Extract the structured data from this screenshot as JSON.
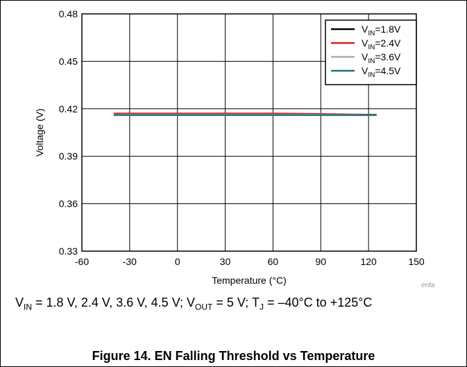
{
  "chart_data": {
    "type": "line",
    "xlabel": "Temperature (°C)",
    "ylabel": "Voltage (V)",
    "xlim": [
      -60,
      150
    ],
    "ylim": [
      0.33,
      0.48
    ],
    "xticks": [
      "-60",
      "-30",
      "0",
      "30",
      "60",
      "90",
      "120",
      "150"
    ],
    "yticks": [
      "0.33",
      "0.36",
      "0.39",
      "0.42",
      "0.45",
      "0.48"
    ],
    "grid": true,
    "legend_position": "top-right",
    "series": [
      {
        "name": "VIN=1.8V",
        "label_main": "V",
        "label_sub": "IN",
        "label_rest": "=1.8V",
        "color": "#000000",
        "x": [
          -40,
          0,
          25,
          60,
          85,
          125
        ],
        "y": [
          0.4165,
          0.4165,
          0.4165,
          0.4165,
          0.4165,
          0.4162
        ]
      },
      {
        "name": "VIN=2.4V",
        "label_main": "V",
        "label_sub": "IN",
        "label_rest": "=2.4V",
        "color": "#d42020",
        "x": [
          -40,
          0,
          25,
          60,
          85,
          125
        ],
        "y": [
          0.417,
          0.417,
          0.417,
          0.417,
          0.4168,
          0.4162
        ]
      },
      {
        "name": "VIN=3.6V",
        "label_main": "V",
        "label_sub": "IN",
        "label_rest": "=3.6V",
        "color": "#aaaaaa",
        "x": [
          -40,
          0,
          25,
          60,
          85,
          125
        ],
        "y": [
          0.4163,
          0.4163,
          0.4163,
          0.4163,
          0.4163,
          0.4161
        ]
      },
      {
        "name": "VIN=4.5V",
        "label_main": "V",
        "label_sub": "IN",
        "label_rest": "=4.5V",
        "color": "#2a6e78",
        "x": [
          -40,
          0,
          25,
          60,
          85,
          125
        ],
        "y": [
          0.416,
          0.416,
          0.416,
          0.416,
          0.416,
          0.416
        ]
      }
    ],
    "annotation_code": "enfa"
  },
  "conditions": {
    "vin_main": "V",
    "vin_sub": "IN",
    "vin_values": " = 1.8 V, 2.4 V, 3.6 V, 4.5 V; ",
    "vout_main": "V",
    "vout_sub": "OUT",
    "vout_value": " = 5 V; ",
    "tj_main": "T",
    "tj_sub": "J",
    "tj_value": " = –40°C to +125°C"
  },
  "caption": "Figure 14. EN Falling Threshold vs Temperature"
}
